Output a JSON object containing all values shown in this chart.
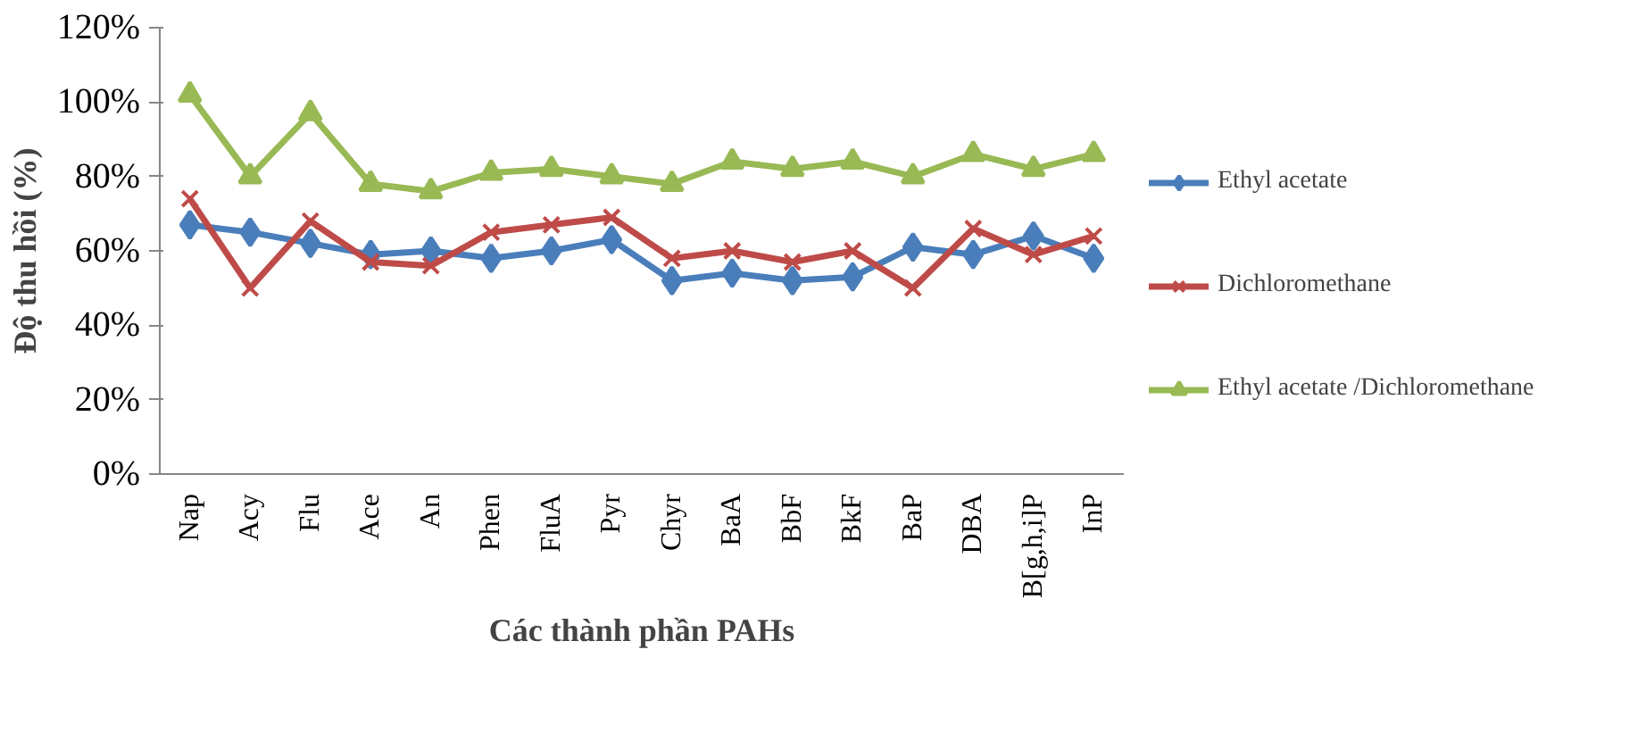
{
  "chart_data": {
    "type": "line",
    "xlabel": "Các thành phần PAHs",
    "ylabel": "Độ thu hồi (%)",
    "categories": [
      "Nap",
      "Acy",
      "Flu",
      "Ace",
      "An",
      "Phen",
      "FluA",
      "Pyr",
      "Chyr",
      "BaA",
      "BbF",
      "BkF",
      "BaP",
      "DBA",
      "B[g,h,i]P",
      "InP"
    ],
    "series": [
      {
        "name": "Ethyl acetate",
        "color": "#4a7ebb",
        "marker": "diamond",
        "values": [
          67,
          65,
          62,
          59,
          60,
          58,
          60,
          63,
          52,
          54,
          52,
          53,
          61,
          59,
          64,
          58
        ]
      },
      {
        "name": "Dichloromethane",
        "color": "#be4b48",
        "marker": "cross",
        "values": [
          74,
          50,
          68,
          57,
          56,
          65,
          67,
          69,
          58,
          60,
          57,
          60,
          50,
          66,
          59,
          64
        ]
      },
      {
        "name": "Ethyl acetate /Dichloromethane",
        "color": "#98b954",
        "marker": "triangle",
        "values": [
          102,
          80,
          97,
          78,
          76,
          81,
          82,
          80,
          78,
          84,
          82,
          84,
          80,
          86,
          82,
          86
        ]
      }
    ],
    "ylim": [
      0,
      120
    ],
    "yticks": [
      {
        "value": 0,
        "label": "0%"
      },
      {
        "value": 20,
        "label": "20%"
      },
      {
        "value": 40,
        "label": "40%"
      },
      {
        "value": 60,
        "label": "60%"
      },
      {
        "value": 80,
        "label": "80%"
      },
      {
        "value": 100,
        "label": "100%"
      },
      {
        "value": 120,
        "label": "120%"
      }
    ],
    "grid": false,
    "legend": "right",
    "line_style": "solid"
  }
}
